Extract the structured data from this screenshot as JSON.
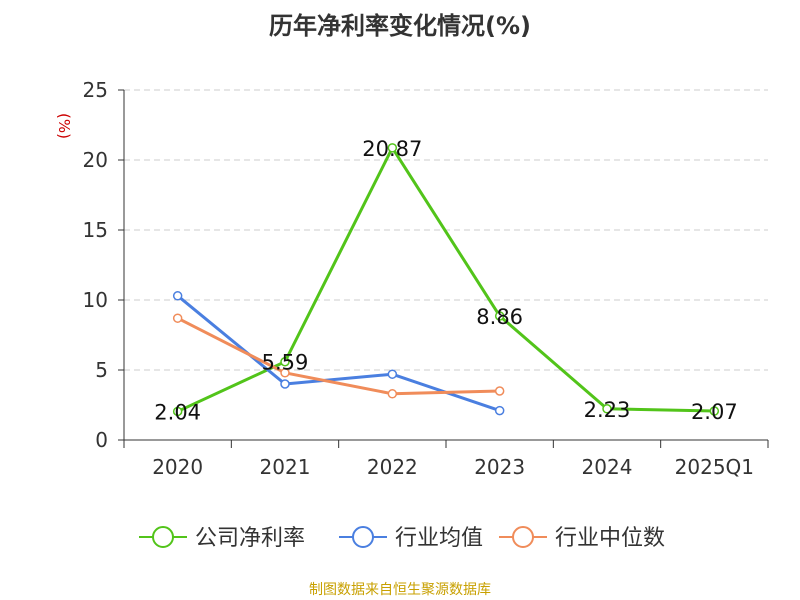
{
  "title": "历年净利率变化情况(%)",
  "y_unit": "(%)",
  "source": "制图数据来自恒生聚源数据库",
  "colors": {
    "company": "#52c41a",
    "industry_avg": "#4a7fe0",
    "industry_median": "#f08c5a",
    "grid": "#cccccc",
    "axis": "#333333",
    "text": "#333333"
  },
  "chart_data": {
    "type": "line",
    "categories": [
      "2020",
      "2021",
      "2022",
      "2023",
      "2024",
      "2025Q1"
    ],
    "ylim": [
      0,
      25
    ],
    "y_ticks": [
      0,
      5,
      10,
      15,
      20,
      25
    ],
    "grid": true,
    "legend_position": "bottom",
    "series": [
      {
        "name": "公司净利率",
        "color_key": "company",
        "values": [
          2.04,
          5.59,
          20.87,
          8.86,
          2.23,
          2.07
        ],
        "labels": [
          "2.04",
          "5.59",
          "20.87",
          "8.86",
          "2.23",
          "2.07"
        ]
      },
      {
        "name": "行业均值",
        "color_key": "industry_avg",
        "values": [
          10.3,
          4.0,
          4.7,
          2.1,
          null,
          null
        ]
      },
      {
        "name": "行业中位数",
        "color_key": "industry_median",
        "values": [
          8.7,
          4.8,
          3.3,
          3.5,
          null,
          null
        ]
      }
    ]
  }
}
